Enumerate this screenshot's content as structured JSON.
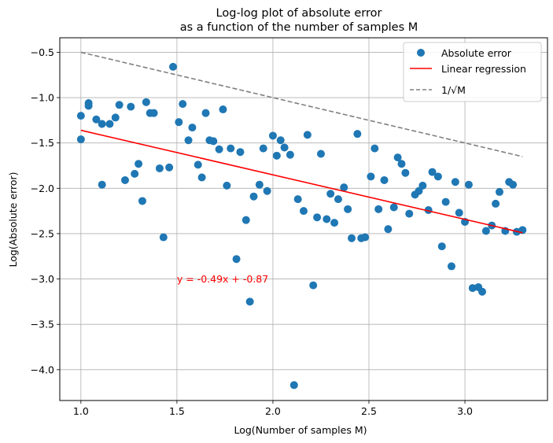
{
  "chart_data": {
    "type": "scatter",
    "title": "Log-log plot of absolute error",
    "subtitle": "as a function of the number of samples M",
    "xlabel": "Log(Number of samples M)",
    "ylabel": "Log(Absolute error)",
    "xlim": [
      0.89,
      3.43
    ],
    "ylim": [
      -4.34,
      -0.34
    ],
    "xticks": [
      1.0,
      1.5,
      2.0,
      2.5,
      3.0
    ],
    "yticks": [
      -4.0,
      -3.5,
      -3.0,
      -2.5,
      -2.0,
      -1.5,
      -1.0,
      -0.5
    ],
    "xtick_labels": [
      "1.0",
      "1.5",
      "2.0",
      "2.5",
      "3.0"
    ],
    "ytick_labels": [
      "−4.0",
      "−3.5",
      "−3.0",
      "−2.5",
      "−2.0",
      "−1.5",
      "−1.0",
      "−0.5"
    ],
    "grid": true,
    "legend_position": "top-right",
    "series": [
      {
        "name": "Absolute error",
        "kind": "scatter",
        "color": "#1f77b4",
        "points": [
          [
            1.0,
            -1.2
          ],
          [
            1.0,
            -1.46
          ],
          [
            1.04,
            -1.06
          ],
          [
            1.04,
            -1.09
          ],
          [
            1.08,
            -1.24
          ],
          [
            1.11,
            -1.29
          ],
          [
            1.11,
            -1.96
          ],
          [
            1.15,
            -1.29
          ],
          [
            1.18,
            -1.22
          ],
          [
            1.2,
            -1.08
          ],
          [
            1.23,
            -1.91
          ],
          [
            1.26,
            -1.1
          ],
          [
            1.28,
            -1.84
          ],
          [
            1.3,
            -1.73
          ],
          [
            1.32,
            -2.14
          ],
          [
            1.34,
            -1.05
          ],
          [
            1.36,
            -1.17
          ],
          [
            1.38,
            -1.17
          ],
          [
            1.41,
            -1.78
          ],
          [
            1.43,
            -2.54
          ],
          [
            1.46,
            -1.77
          ],
          [
            1.48,
            -0.66
          ],
          [
            1.51,
            -1.27
          ],
          [
            1.53,
            -1.07
          ],
          [
            1.56,
            -1.47
          ],
          [
            1.58,
            -1.33
          ],
          [
            1.61,
            -1.74
          ],
          [
            1.63,
            -1.88
          ],
          [
            1.65,
            -1.17
          ],
          [
            1.67,
            -1.47
          ],
          [
            1.69,
            -1.48
          ],
          [
            1.72,
            -1.57
          ],
          [
            1.74,
            -1.13
          ],
          [
            1.76,
            -1.97
          ],
          [
            1.78,
            -1.56
          ],
          [
            1.81,
            -2.78
          ],
          [
            1.83,
            -1.6
          ],
          [
            1.86,
            -2.35
          ],
          [
            1.88,
            -3.25
          ],
          [
            1.9,
            -2.09
          ],
          [
            1.93,
            -1.96
          ],
          [
            1.95,
            -1.56
          ],
          [
            1.97,
            -2.03
          ],
          [
            2.0,
            -1.42
          ],
          [
            2.02,
            -1.64
          ],
          [
            2.04,
            -1.47
          ],
          [
            2.06,
            -1.55
          ],
          [
            2.09,
            -1.63
          ],
          [
            2.11,
            -4.17
          ],
          [
            2.13,
            -2.12
          ],
          [
            2.16,
            -2.25
          ],
          [
            2.18,
            -1.41
          ],
          [
            2.21,
            -3.07
          ],
          [
            2.23,
            -2.32
          ],
          [
            2.25,
            -1.62
          ],
          [
            2.28,
            -2.34
          ],
          [
            2.3,
            -2.06
          ],
          [
            2.32,
            -2.38
          ],
          [
            2.34,
            -2.12
          ],
          [
            2.37,
            -1.99
          ],
          [
            2.39,
            -2.23
          ],
          [
            2.41,
            -2.55
          ],
          [
            2.44,
            -1.4
          ],
          [
            2.46,
            -2.55
          ],
          [
            2.48,
            -2.54
          ],
          [
            2.51,
            -1.87
          ],
          [
            2.53,
            -1.56
          ],
          [
            2.55,
            -2.23
          ],
          [
            2.58,
            -1.91
          ],
          [
            2.6,
            -2.45
          ],
          [
            2.63,
            -2.21
          ],
          [
            2.65,
            -1.66
          ],
          [
            2.67,
            -1.73
          ],
          [
            2.69,
            -1.83
          ],
          [
            2.71,
            -2.28
          ],
          [
            2.74,
            -2.07
          ],
          [
            2.76,
            -2.03
          ],
          [
            2.78,
            -1.97
          ],
          [
            2.81,
            -2.24
          ],
          [
            2.83,
            -1.82
          ],
          [
            2.86,
            -1.87
          ],
          [
            2.88,
            -2.64
          ],
          [
            2.9,
            -2.15
          ],
          [
            2.93,
            -2.86
          ],
          [
            2.95,
            -1.93
          ],
          [
            2.97,
            -2.27
          ],
          [
            3.0,
            -2.37
          ],
          [
            3.02,
            -1.96
          ],
          [
            3.04,
            -3.1
          ],
          [
            3.07,
            -3.09
          ],
          [
            3.09,
            -3.14
          ],
          [
            3.11,
            -2.47
          ],
          [
            3.14,
            -2.41
          ],
          [
            3.16,
            -2.17
          ],
          [
            3.18,
            -2.04
          ],
          [
            3.21,
            -2.47
          ],
          [
            3.23,
            -1.93
          ],
          [
            3.25,
            -1.96
          ],
          [
            3.27,
            -2.48
          ],
          [
            3.3,
            -2.46
          ]
        ]
      },
      {
        "name": "Linear regression",
        "kind": "line",
        "color": "#ff0000",
        "dashed": false,
        "x": [
          1.0,
          3.3
        ],
        "y": [
          -1.36,
          -2.49
        ]
      },
      {
        "name": "1/√M",
        "kind": "line",
        "color": "#808080",
        "dashed": true,
        "x": [
          1.0,
          3.3
        ],
        "y": [
          -0.5,
          -1.65
        ]
      }
    ],
    "annotations": [
      {
        "text": "y = -0.49x + -0.87",
        "x": 1.5,
        "y": -3.0,
        "color": "#ff0000"
      }
    ]
  }
}
